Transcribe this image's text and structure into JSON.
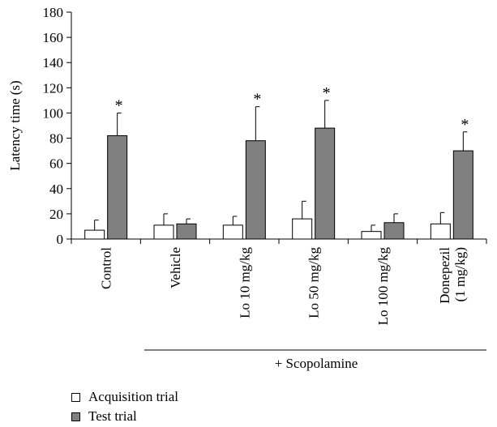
{
  "chart_data": {
    "type": "bar",
    "ylabel": "Latency time (s)",
    "xlabel": "",
    "ylim": [
      0,
      180
    ],
    "yticks": [
      0,
      20,
      40,
      60,
      80,
      100,
      120,
      140,
      160,
      180
    ],
    "categories": [
      "Control",
      "Vehicle",
      "Lo 10 mg/kg",
      "Lo 50 mg/kg",
      "Lo 100 mg/kg",
      "Donepezil (1 mg/kg)"
    ],
    "category_lines": [
      [
        "Control"
      ],
      [
        "Vehicle"
      ],
      [
        "Lo 10 mg/kg"
      ],
      [
        "Lo 50 mg/kg"
      ],
      [
        "Lo 100 mg/kg"
      ],
      [
        "Donepezil",
        "(1 mg/kg)"
      ]
    ],
    "series": [
      {
        "name": "Acquisition trial",
        "color": "#ffffff",
        "values": [
          7,
          11,
          11,
          16,
          6,
          12
        ],
        "errors": [
          8,
          9,
          7,
          14,
          5,
          9
        ]
      },
      {
        "name": "Test trial",
        "color": "#808080",
        "values": [
          82,
          12,
          78,
          88,
          13,
          70
        ],
        "errors": [
          18,
          4,
          27,
          22,
          7,
          15
        ]
      }
    ],
    "significance_marker": "*",
    "significant": [
      true,
      false,
      true,
      true,
      false,
      true
    ],
    "group_label": "+ Scopolamine",
    "grid": false,
    "legend_position": "bottom-left"
  }
}
